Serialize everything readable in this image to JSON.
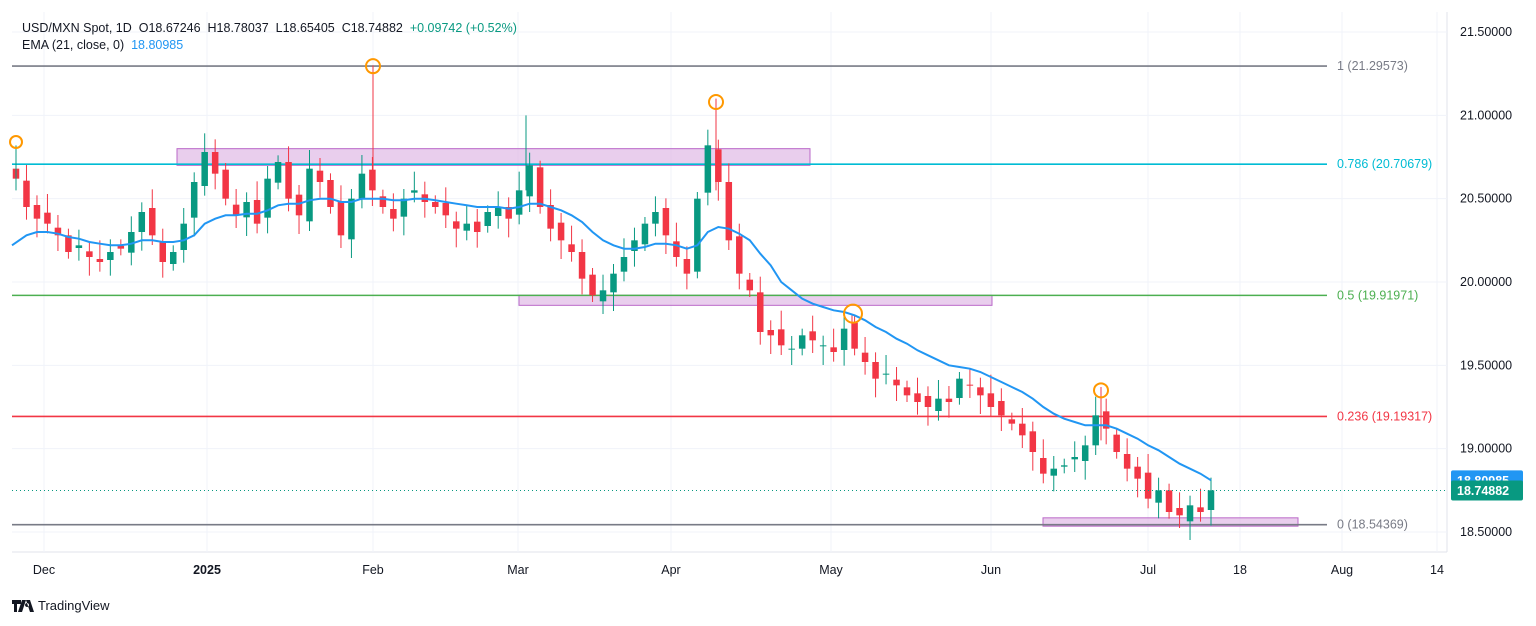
{
  "header": {
    "symbol": "USD/MXN Spot, 1D",
    "open": "O18.67246",
    "high": "H18.78037",
    "low": "L18.65405",
    "close": "C18.74882",
    "change": "+0.09742 (+0.52%)",
    "ema_label": "EMA (21, close, 0)",
    "ema_value": "18.80985"
  },
  "branding": {
    "logo_text": "TradingView"
  },
  "colors": {
    "up": "#089981",
    "down": "#f23645",
    "ema": "#2196f3",
    "zone": "#e1bee7"
  },
  "chart_data": {
    "type": "candlestick",
    "y_range": [
      18.38,
      21.62
    ],
    "y_ticks": [
      "18.50000",
      "19.00000",
      "19.50000",
      "20.00000",
      "20.50000",
      "21.00000",
      "21.50000"
    ],
    "y_tick_values": [
      18.5,
      19.0,
      19.5,
      20.0,
      20.5,
      21.0,
      21.5
    ],
    "x_ticks": [
      "Dec",
      "2025",
      "Feb",
      "Mar",
      "Apr",
      "May",
      "Jun",
      "Jul",
      "18",
      "Aug",
      "14"
    ],
    "last_price_label": "18.74882",
    "ema_price_label": "18.80985",
    "fib_levels": [
      {
        "label": "1 (21.29573)",
        "value": 21.29573,
        "color": "#787b86"
      },
      {
        "label": "0.786 (20.70679)",
        "value": 20.70679,
        "color": "#00bcd4"
      },
      {
        "label": "0.5 (19.91971)",
        "value": 19.91971,
        "color": "#4caf50"
      },
      {
        "label": "0.236 (19.19317)",
        "value": 19.19317,
        "color": "#f23645"
      },
      {
        "label": "0 (18.54369)",
        "value": 18.54369,
        "color": "#787b86"
      }
    ],
    "closes": [
      20.62,
      20.45,
      20.38,
      20.35,
      20.28,
      20.18,
      20.22,
      20.15,
      20.12,
      20.18,
      20.2,
      20.3,
      20.42,
      20.28,
      20.12,
      20.18,
      20.35,
      20.6,
      20.78,
      20.65,
      20.5,
      20.4,
      20.48,
      20.35,
      20.62,
      20.72,
      20.5,
      20.4,
      20.68,
      20.6,
      20.45,
      20.28,
      20.5,
      20.65,
      20.55,
      20.45,
      20.38,
      20.5,
      20.55,
      20.48,
      20.45,
      20.4,
      20.32,
      20.35,
      20.3,
      20.42,
      20.45,
      20.38,
      20.55,
      20.7,
      20.45,
      20.32,
      20.25,
      20.18,
      20.02,
      19.92,
      19.95,
      20.05,
      20.15,
      20.25,
      20.35,
      20.42,
      20.28,
      20.15,
      20.05,
      20.5,
      20.82,
      20.6,
      20.25,
      20.05,
      19.95,
      19.7,
      19.68,
      19.62,
      19.6,
      19.68,
      19.65,
      19.62,
      19.58,
      19.72,
      19.6,
      19.52,
      19.42,
      19.45,
      19.38,
      19.32,
      19.28,
      19.25,
      19.3,
      19.28,
      19.42,
      19.38,
      19.32,
      19.25,
      19.2,
      19.15,
      19.08,
      18.98,
      18.85,
      18.88,
      18.9,
      18.95,
      19.02,
      19.2,
      19.12,
      18.98,
      18.88,
      18.82,
      18.7,
      18.75,
      18.62,
      18.6,
      18.66,
      18.62,
      18.75
    ],
    "ema": [
      20.25,
      20.28,
      20.3,
      20.3,
      20.29,
      20.27,
      20.26,
      20.24,
      20.23,
      20.22,
      20.22,
      20.23,
      20.25,
      20.25,
      20.24,
      20.24,
      20.25,
      20.28,
      20.35,
      20.38,
      20.4,
      20.4,
      20.41,
      20.41,
      20.43,
      20.46,
      20.47,
      20.47,
      20.49,
      20.5,
      20.5,
      20.48,
      20.48,
      20.5,
      20.5,
      20.5,
      20.49,
      20.49,
      20.5,
      20.5,
      20.49,
      20.48,
      20.47,
      20.46,
      20.45,
      20.45,
      20.45,
      20.44,
      20.45,
      20.47,
      20.47,
      20.45,
      20.43,
      20.4,
      20.36,
      20.3,
      20.25,
      20.22,
      20.2,
      20.2,
      20.21,
      20.23,
      20.23,
      20.22,
      20.2,
      20.22,
      20.3,
      20.33,
      20.32,
      20.29,
      20.25,
      20.17,
      20.1,
      20.0,
      19.95,
      19.9,
      19.87,
      19.85,
      19.83,
      19.82,
      19.8,
      19.77,
      19.73,
      19.7,
      19.66,
      19.63,
      19.59,
      19.56,
      19.53,
      19.5,
      19.49,
      19.48,
      19.46,
      19.43,
      19.4,
      19.37,
      19.34,
      19.3,
      19.25,
      19.21,
      19.18,
      19.16,
      19.14,
      19.14,
      19.14,
      19.12,
      19.09,
      19.06,
      19.02,
      18.99,
      18.95,
      18.91,
      18.88,
      18.85,
      18.81
    ]
  }
}
